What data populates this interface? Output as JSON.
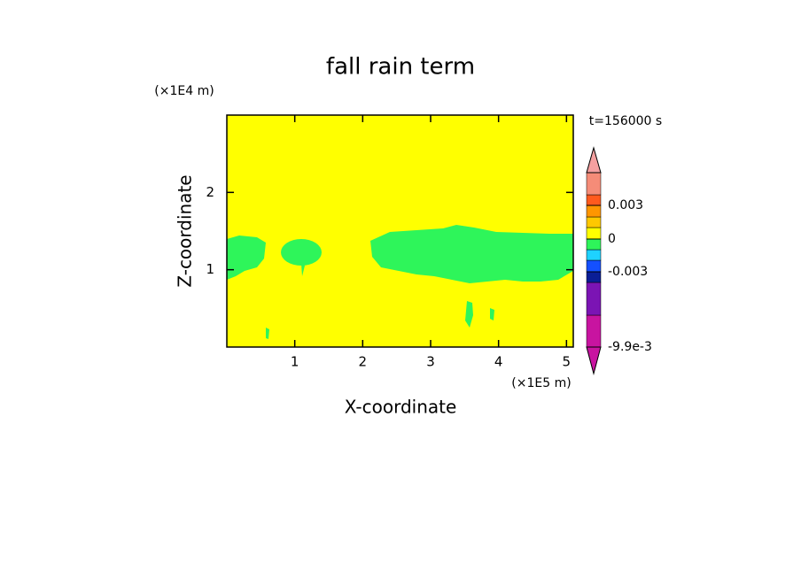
{
  "chart_data": {
    "type": "contour",
    "title": "fall rain term",
    "x_label": "X-coordinate",
    "y_label": "Z-coordinate",
    "x_unit": "(×1E5 m)",
    "y_unit": "(×1E4 m)",
    "annotation": "t=156000 s",
    "xlim": [
      0,
      5.1
    ],
    "xticks": [
      1,
      2,
      3,
      4,
      5
    ],
    "ylim": [
      0,
      3
    ],
    "yticks": [
      1,
      2
    ],
    "colorbar": {
      "colors": [
        "#c814a0",
        "#c814a0",
        "#7b14b4",
        "#0a1e96",
        "#1450ff",
        "#1ed2ff",
        "#2ef55a",
        "#ffff00",
        "#ffc800",
        "#ff9600",
        "#ff5a1e",
        "#f58c78",
        "#f5a0a0"
      ],
      "ticks": [
        {
          "value": -0.0099,
          "label": "-9.9e-3"
        },
        -0.003,
        0,
        0.003
      ]
    }
  }
}
